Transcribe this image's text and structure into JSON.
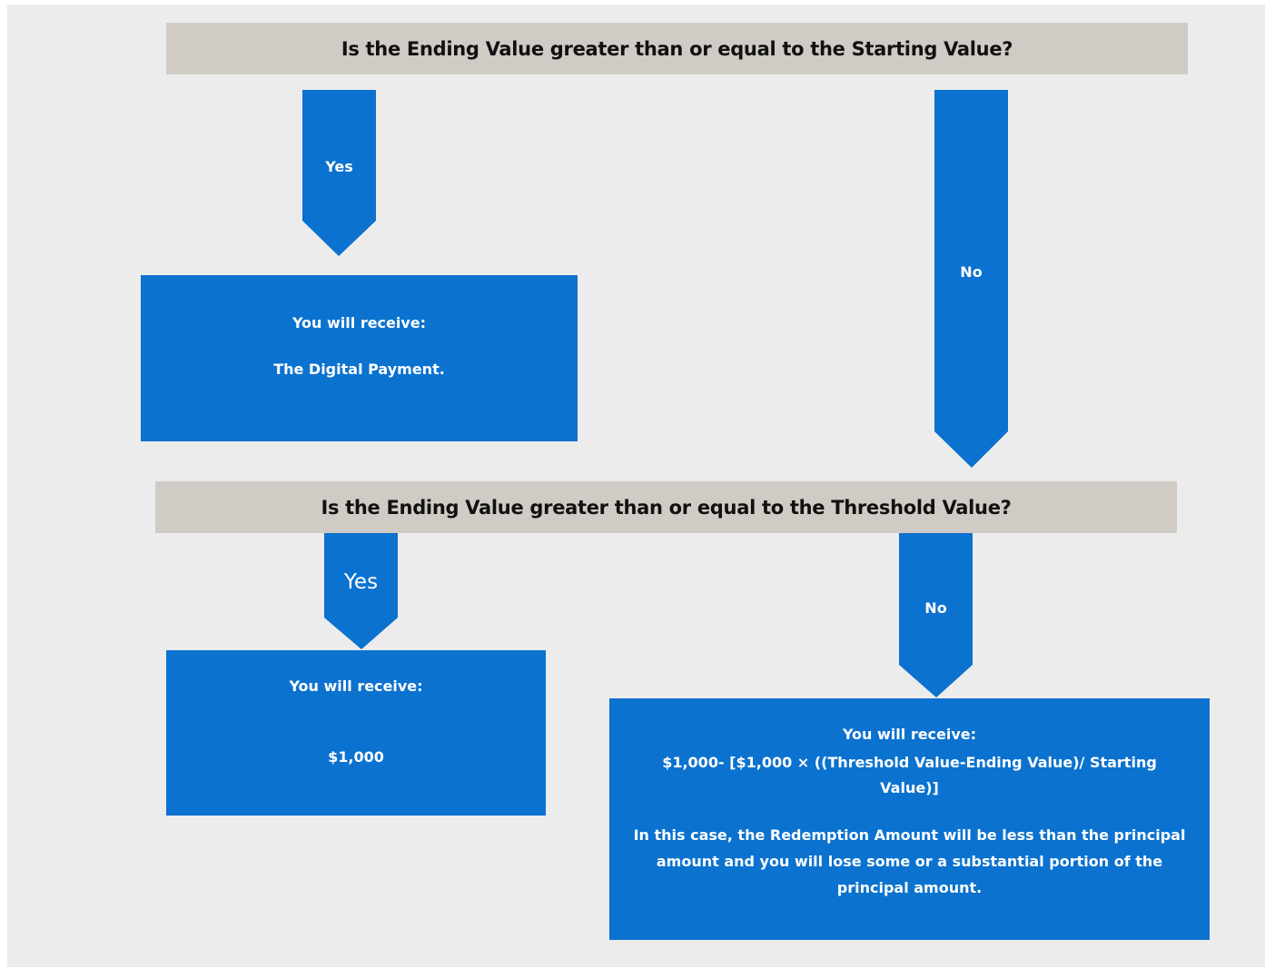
{
  "q1": {
    "text": "Is the Ending Value greater than or equal to the Starting Value?",
    "yes": "Yes",
    "no": "No"
  },
  "box_1": {
    "lines": [
      "You will receive:",
      "The Digital Payment."
    ]
  },
  "q2": {
    "text": "Is the Ending Value greater than or equal to the Threshold Value?",
    "yes": "Yes",
    "no": "No"
  },
  "box_2": {
    "lines": [
      "You will receive:",
      "$1,000"
    ]
  },
  "box_3": {
    "lines": [
      "You will receive:",
      "$1,000- [$1,000 × ((Threshold Value-Ending Value)/ Starting Value)]",
      "In this case, the Redemption Amount will be less than the principal amount and you will lose some or a substantial portion of the principal amount."
    ]
  }
}
